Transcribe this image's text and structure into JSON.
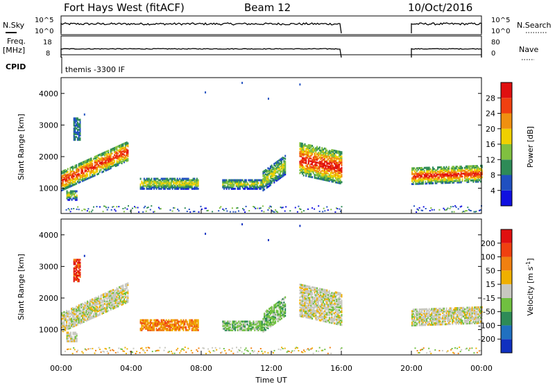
{
  "header": {
    "station": "Fort Hays West (fitACF)",
    "beam": "Beam 12",
    "date": "10/Oct/2016"
  },
  "top_panels": {
    "nsky_label": "N.Sky",
    "nsearch_label": "N.Search",
    "nsky_ticks": [
      "10^5",
      "10^0"
    ],
    "nsearch_ticks": [
      "10^5",
      "10^0"
    ],
    "freq_label_1": "Freq.",
    "freq_label_2": "[MHz]",
    "freq_ticks": [
      "18",
      "8"
    ],
    "nave_label": "Nave",
    "nave_ticks": [
      "80",
      "0"
    ],
    "cpid_label": "CPID",
    "cpid_text": "themis -3300 IF"
  },
  "chart_data": [
    {
      "type": "heatmap",
      "name": "power",
      "ylabel": "Slant Range [km]",
      "xlabel": "",
      "yticks": [
        1000,
        2000,
        3000,
        4000
      ],
      "ylim": [
        200,
        4500
      ],
      "xlim_hours": [
        0,
        24
      ],
      "colorbar_label": "Power [dB]",
      "colorbar_ticks": [
        "4",
        "8",
        "12",
        "16",
        "20",
        "24",
        "28"
      ],
      "colorbar_colors": [
        "#1010e0",
        "#2050c0",
        "#2e8b57",
        "#80c040",
        "#f0d000",
        "#f09010",
        "#f04010",
        "#e01010"
      ],
      "data_gaps_hours": [
        [
          16,
          20
        ]
      ]
    },
    {
      "type": "heatmap",
      "name": "velocity",
      "ylabel": "Slant Range [km]",
      "xlabel": "Time UT",
      "yticks": [
        1000,
        2000,
        3000,
        4000
      ],
      "ylim": [
        200,
        4500
      ],
      "xlim_hours": [
        0,
        24
      ],
      "xticks": [
        "00:00",
        "04:00",
        "08:00",
        "12:00",
        "16:00",
        "20:00",
        "00:00"
      ],
      "colorbar_label_1": "Velocity [m s",
      "colorbar_label_sup": "-1",
      "colorbar_label_2": "]",
      "colorbar_ticks": [
        "200",
        "100",
        "50",
        "15",
        "-15",
        "-50",
        "-100",
        "-200"
      ],
      "colorbar_colors": [
        "#1030c0",
        "#2070c0",
        "#2e8b57",
        "#70c040",
        "#c8c8c0",
        "#f0b000",
        "#f08010",
        "#f04010",
        "#e01010"
      ],
      "data_gaps_hours": [
        [
          16,
          20
        ]
      ]
    }
  ]
}
